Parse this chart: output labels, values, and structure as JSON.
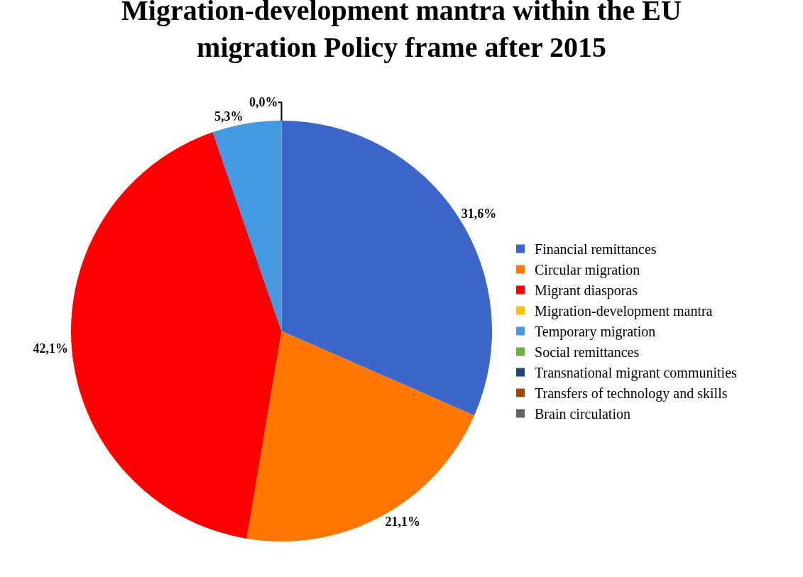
{
  "chart_data": {
    "type": "pie",
    "title": "Migration-development mantra within the EU migration Policy frame after 2015",
    "categories": [
      "Financial remittances",
      "Circular migration",
      "Migrant diasporas",
      "Migration-development mantra",
      "Temporary migration",
      "Social remittances",
      "Transnational migrant communities",
      "Transfers of technology and skills",
      "Brain circulation"
    ],
    "values": [
      31.6,
      21.1,
      42.1,
      0.0,
      5.3,
      0.0,
      0.0,
      0.0,
      0.0
    ],
    "colors": [
      "#3c66cc",
      "#ff7700",
      "#ff0000",
      "#ffc000",
      "#4499e0",
      "#70ad47",
      "#264478",
      "#9e480e",
      "#636363"
    ],
    "value_labels": [
      "31,6%",
      "21,1%",
      "42,1%",
      null,
      "5,3%",
      "0,0%",
      null,
      null,
      null
    ],
    "legend": "right"
  }
}
